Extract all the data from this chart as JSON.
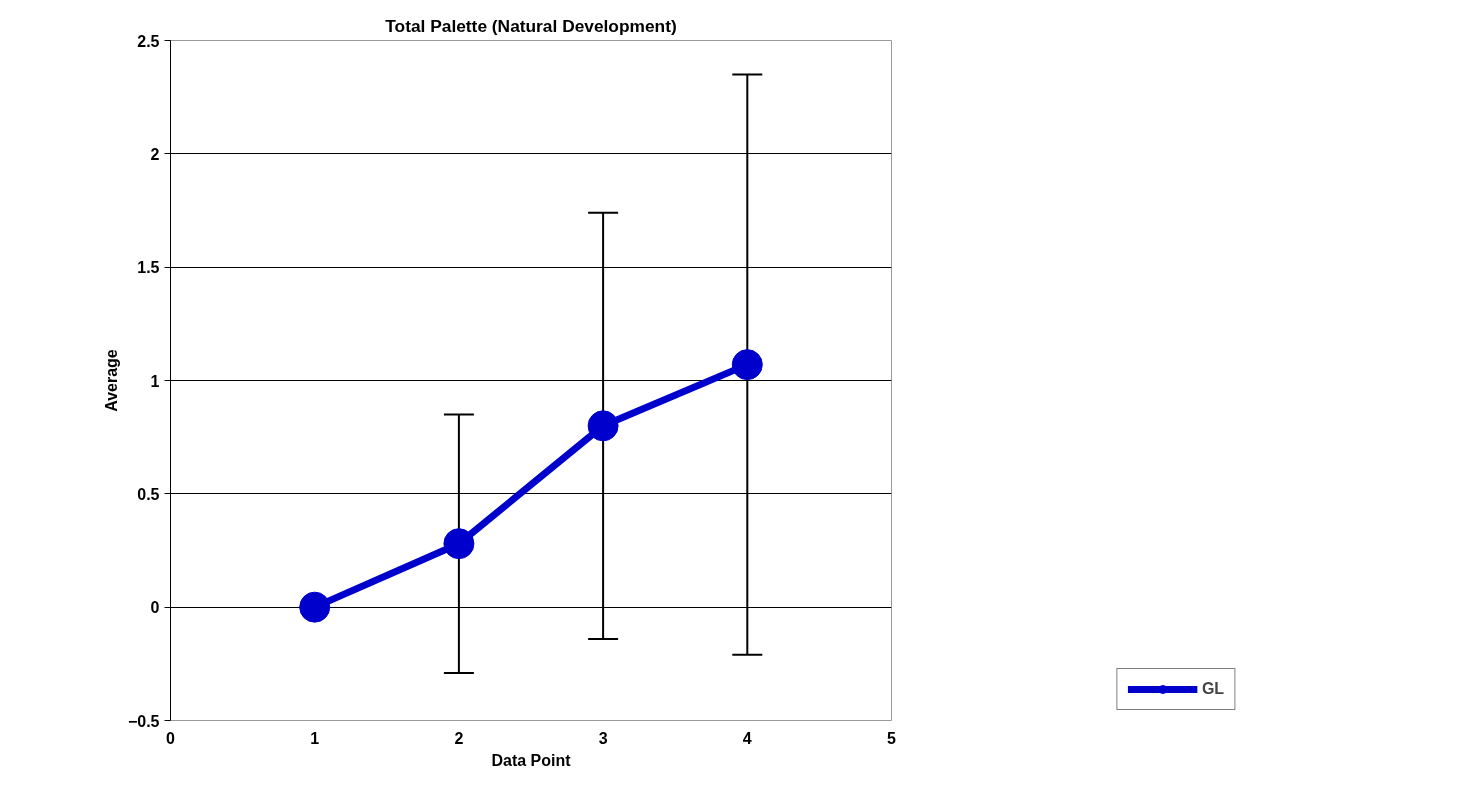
{
  "chart_data": {
    "type": "line",
    "title": "Total Palette (Natural Development)",
    "xlabel": "Data Point",
    "ylabel": "Average",
    "x": [
      1,
      2,
      3,
      4
    ],
    "series": [
      {
        "name": "GL",
        "color": "#0000cc",
        "values": [
          0,
          0.28,
          0.8,
          1.07
        ],
        "errors": [
          null,
          0.57,
          0.94,
          1.28
        ]
      }
    ],
    "xlim": [
      0,
      5
    ],
    "xticks": [
      0,
      1,
      2,
      3,
      4,
      5
    ],
    "ylim": [
      -0.5,
      2.5
    ],
    "yticks": [
      -0.5,
      0,
      0.5,
      1,
      1.5,
      2,
      2.5
    ],
    "grid": "y",
    "legend": "bottom right",
    "marker": "circle",
    "line_style": "solid"
  }
}
